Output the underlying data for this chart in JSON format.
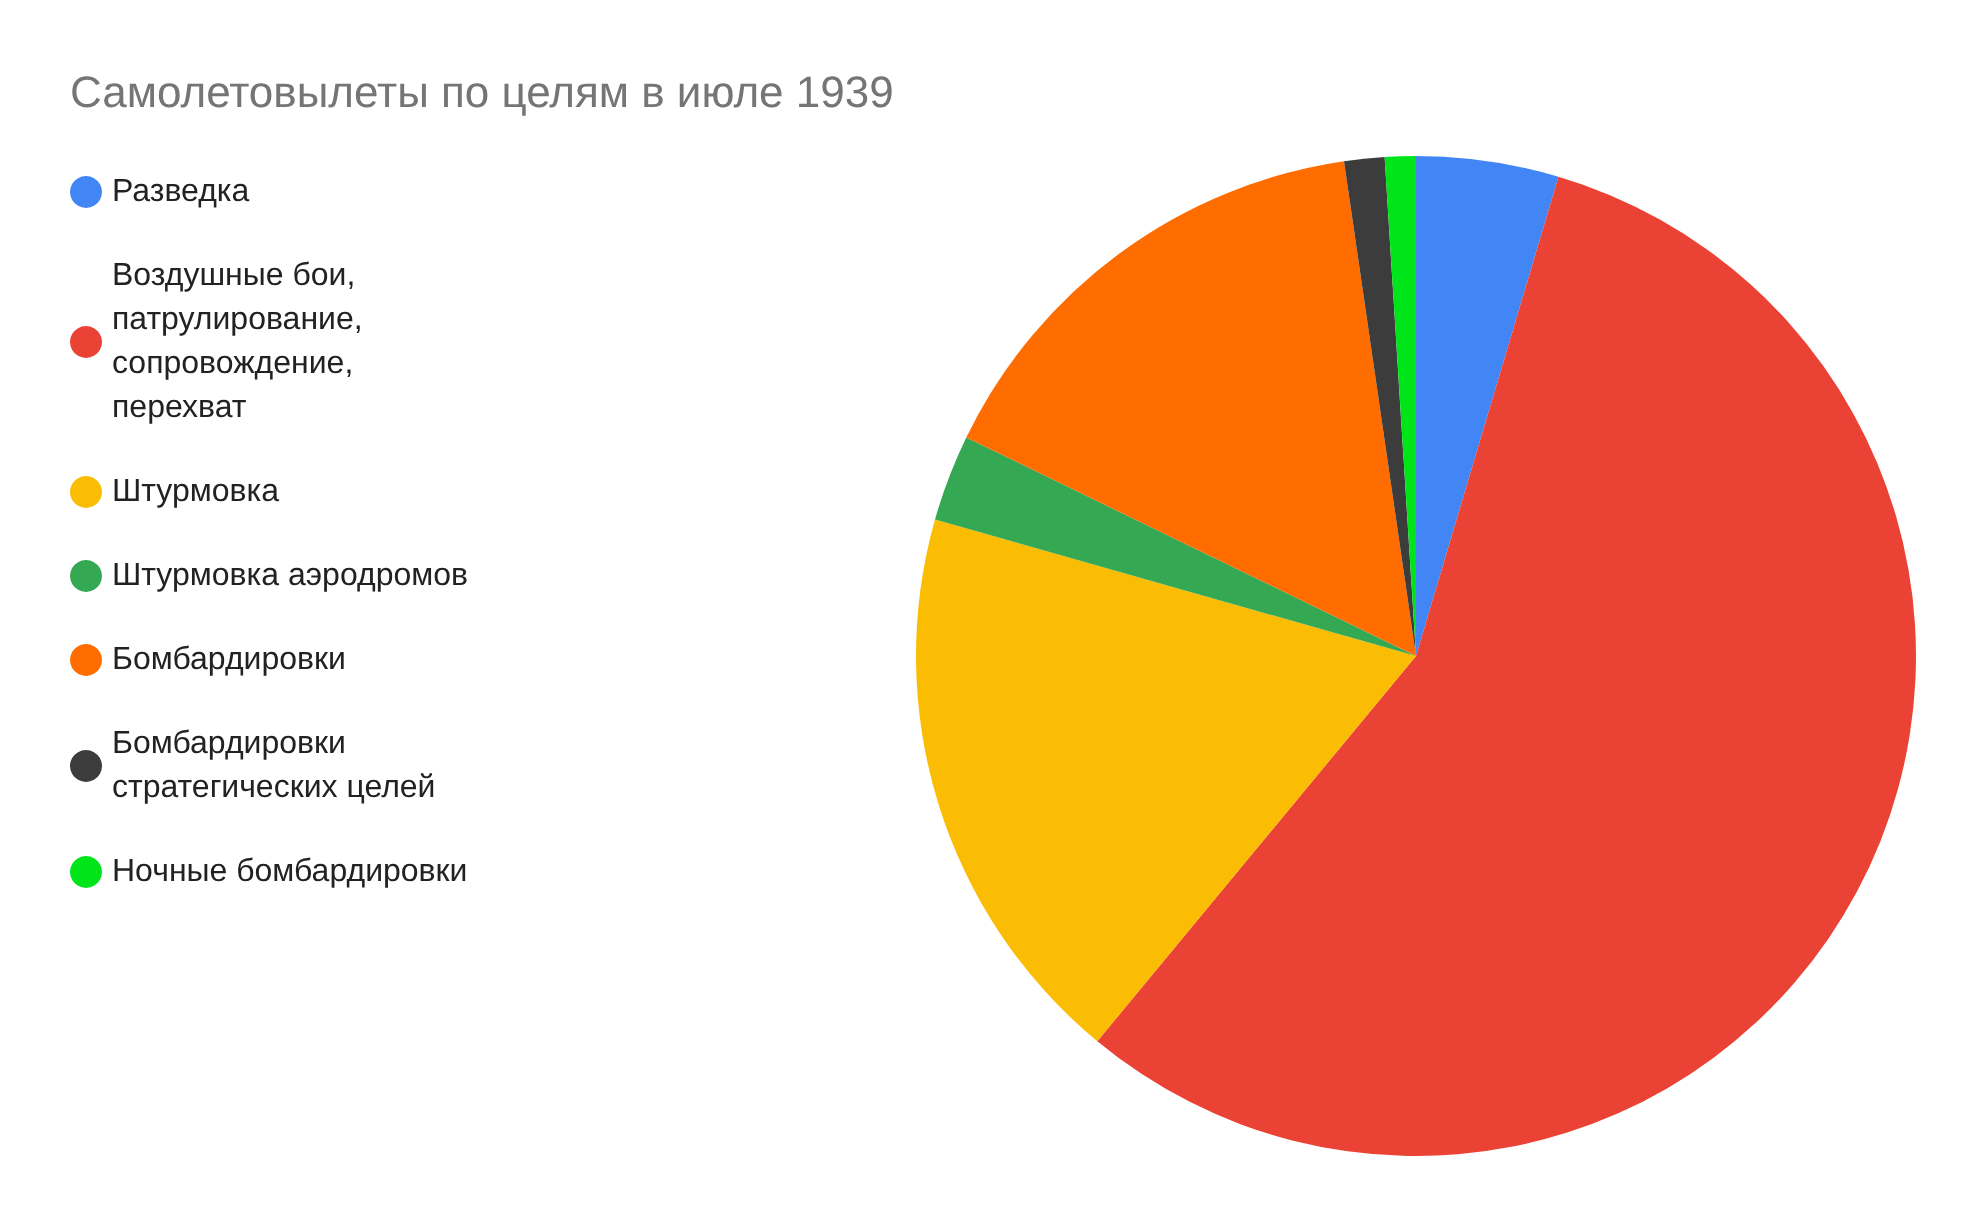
{
  "chart_data": {
    "type": "pie",
    "title": "Самолетовылеты по целям в июле 1939",
    "categories": [
      "Разведка",
      "Воздушные бои, патрулирование, сопровождение, перехват",
      "Штурмовка",
      "Штурмовка аэродромов",
      "Бомбардировки",
      "Бомбардировки стратегических целей",
      "Ночные бомбардировки"
    ],
    "values": [
      4.6,
      56.4,
      18.4,
      2.8,
      15.5,
      1.3,
      1.0
    ],
    "colors": [
      "#4285f4",
      "#ea4335",
      "#fbbc04",
      "#34a853",
      "#ff6d01",
      "#3c3c3c",
      "#00e51a"
    ],
    "legend": "left"
  }
}
